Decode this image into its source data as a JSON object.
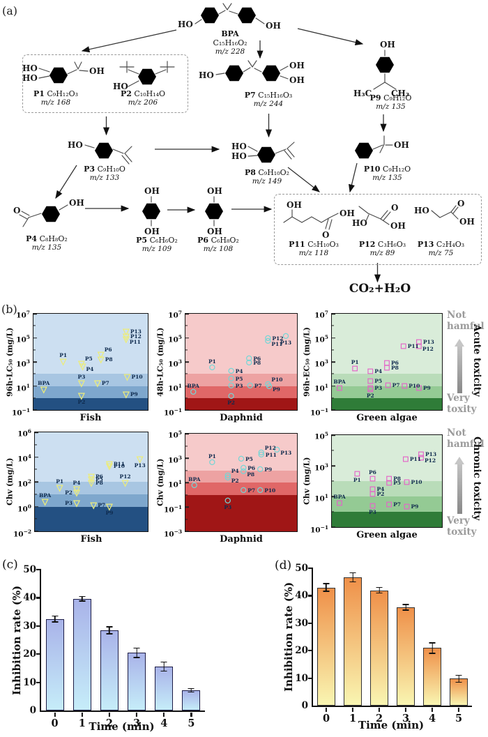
{
  "panel_a": {
    "label": "(a)",
    "final_product": "CO₂+H₂O",
    "compounds": {
      "bpa": {
        "name": "BPA",
        "formula": "C₁₅H₁₆O₂",
        "mz": "m/z 228",
        "atoms": {
          "l": "HO",
          "r": "OH"
        }
      },
      "p1": {
        "name": "P1",
        "formula": "C₉H₁₂O₃",
        "mz": "m/z 168",
        "atoms": {
          "tl": "HO",
          "bl": "HO",
          "r": "OH"
        }
      },
      "p2": {
        "name": "P2",
        "formula": "C₁₀H₁₄O",
        "mz": "m/z 206",
        "atoms": {
          "l": "HO"
        }
      },
      "p3": {
        "name": "P3",
        "formula": "C₉H₁₀O",
        "mz": "m/z 133",
        "atoms": {
          "l": "HO"
        }
      },
      "p4": {
        "name": "P4",
        "formula": "C₈H₈O₂",
        "mz": "m/z 135",
        "atoms": {
          "l": "O",
          "r": "OH"
        }
      },
      "p5": {
        "name": "P5",
        "formula": "C₆H₆O₂",
        "mz": "m/z 109",
        "atoms": {
          "t": "OH",
          "b": "OH"
        }
      },
      "p6": {
        "name": "P6",
        "formula": "C₆H₈O₂",
        "mz": "m/z 108",
        "atoms": {
          "t": "OH",
          "b": "OH"
        }
      },
      "p7": {
        "name": "P7",
        "formula": "C₁₅H₁₆O₃",
        "mz": "m/z 244",
        "atoms": {
          "l": "HO",
          "tr": "OH",
          "br": "OH"
        }
      },
      "p8": {
        "name": "P8",
        "formula": "C₉H₁₀O₂",
        "mz": "m/z 149",
        "atoms": {
          "tl": "HO",
          "bl": "HO"
        }
      },
      "p9": {
        "name": "P9",
        "formula": "C₉H₁₂O",
        "mz": "m/z 135",
        "atoms": {
          "t": "OH",
          "bl": "H₃C",
          "br": "CH₃"
        }
      },
      "p10": {
        "name": "P10",
        "formula": "C₉H₁₂O",
        "mz": "m/z 135",
        "atoms": {
          "r": "OH"
        }
      },
      "p11": {
        "name": "P11",
        "formula": "C₅H₁₀O₃",
        "mz": "m/z 118",
        "atoms": {
          "t": "OH",
          "r": "OH",
          "b": "O"
        }
      },
      "p12": {
        "name": "P12",
        "formula": "C₃H₆O₃",
        "mz": "m/z 89",
        "atoms": {
          "l": "HO",
          "t": "O",
          "r": "OH"
        }
      },
      "p13": {
        "name": "P13",
        "formula": "C₂H₄O₃",
        "mz": "m/z 75",
        "atoms": {
          "l": "HO",
          "t": "O",
          "r": "OH"
        }
      }
    }
  },
  "panel_b": {
    "label": "(b)",
    "band_edges": [
      2,
      1,
      0
    ],
    "themes": {
      "blue": {
        "bands": [
          "#ccdff1",
          "#a8c6e2",
          "#7ea7cd",
          "#235082"
        ],
        "marker": "triangle",
        "marker_color": "#ecec7a"
      },
      "red": {
        "bands": [
          "#f6caca",
          "#eda2a2",
          "#e06767",
          "#a01616"
        ],
        "marker": "circle",
        "marker_color": "#74d6d6"
      },
      "green": {
        "bands": [
          "#d9ecd9",
          "#b9dcb9",
          "#94ca94",
          "#2f7c38"
        ],
        "marker": "square",
        "marker_color": "#e464c8"
      }
    },
    "side": [
      {
        "top": "Not hamful",
        "bottom": "Very toxity",
        "axis": "Acute toxicity"
      },
      {
        "top": "Not hamful",
        "bottom": "Very toxity",
        "axis": "Chronic toxicity"
      }
    ],
    "plots": [
      {
        "ylabel": "96h-LC₅₀ (mg/L)",
        "xlabel": "Fish",
        "log_max": 7,
        "log_min": -1,
        "yticks": [
          7,
          5,
          3,
          1,
          -1
        ],
        "theme": "blue",
        "points": [
          {
            "label": "BPA",
            "value": 5,
            "x": 0.09,
            "lp": "t"
          },
          {
            "label": "P1",
            "value": 1000,
            "x": 0.26,
            "lp": "t"
          },
          {
            "label": "P5",
            "value": 700,
            "x": 0.42,
            "lp": "tr"
          },
          {
            "label": "P4",
            "value": 400,
            "x": 0.43,
            "lp": "br"
          },
          {
            "label": "P3",
            "value": 15,
            "x": 0.42,
            "lp": "t"
          },
          {
            "label": "P2",
            "value": 1.5,
            "x": 0.42,
            "lp": "b"
          },
          {
            "label": "P6",
            "value": 4000,
            "x": 0.59,
            "lp": "tr"
          },
          {
            "label": "P8",
            "value": 1500,
            "x": 0.59,
            "lp": "r"
          },
          {
            "label": "P7",
            "value": 17,
            "x": 0.56,
            "lp": "r"
          },
          {
            "label": "P13",
            "value": 300000,
            "x": 0.81,
            "lp": "r"
          },
          {
            "label": "P12",
            "value": 130000,
            "x": 0.81,
            "lp": "r"
          },
          {
            "label": "P11",
            "value": 70000,
            "x": 0.81,
            "lp": "br"
          },
          {
            "label": "P10",
            "value": 50,
            "x": 0.82,
            "lp": "r"
          },
          {
            "label": "P9",
            "value": 1.8,
            "x": 0.81,
            "lp": "r"
          }
        ]
      },
      {
        "ylabel": "48h-LC₅₀ (mg/L)",
        "xlabel": "Daphnid",
        "log_max": 7,
        "log_min": -1,
        "yticks": [
          7,
          5,
          3,
          1,
          -1
        ],
        "theme": "red",
        "points": [
          {
            "label": "BPA",
            "value": 3,
            "x": 0.07,
            "lp": "t"
          },
          {
            "label": "P1",
            "value": 300,
            "x": 0.24,
            "lp": "t"
          },
          {
            "label": "P4",
            "value": 150,
            "x": 0.41,
            "lp": "r"
          },
          {
            "label": "P5",
            "value": 35,
            "x": 0.41,
            "lp": "r"
          },
          {
            "label": "P3",
            "value": 10,
            "x": 0.41,
            "lp": "r"
          },
          {
            "label": "P2",
            "value": 1.3,
            "x": 0.41,
            "lp": "b"
          },
          {
            "label": "P6",
            "value": 1800,
            "x": 0.57,
            "lp": "r"
          },
          {
            "label": "P8",
            "value": 800,
            "x": 0.57,
            "lp": "r"
          },
          {
            "label": "P7",
            "value": 10,
            "x": 0.58,
            "lp": "r"
          },
          {
            "label": "P12",
            "value": 80000,
            "x": 0.74,
            "lp": "r"
          },
          {
            "label": "P11",
            "value": 50000,
            "x": 0.74,
            "lp": "br"
          },
          {
            "label": "P13",
            "value": 120000,
            "x": 0.9,
            "lp": "b"
          },
          {
            "label": "P10",
            "value": 13,
            "x": 0.74,
            "lp": "tr"
          },
          {
            "label": "P9",
            "value": 8,
            "x": 0.75,
            "lp": "br"
          }
        ]
      },
      {
        "ylabel": "96h-EC₅₀ (mg/L)",
        "xlabel": "Green algae",
        "log_max": 7,
        "log_min": -1,
        "yticks": [
          7,
          5,
          3,
          1,
          -1
        ],
        "theme": "green",
        "points": [
          {
            "label": "BPA",
            "value": 6,
            "x": 0.07,
            "lp": "t"
          },
          {
            "label": "P1",
            "value": 250,
            "x": 0.21,
            "lp": "t"
          },
          {
            "label": "P4",
            "value": 160,
            "x": 0.35,
            "lp": "r"
          },
          {
            "label": "P5",
            "value": 23,
            "x": 0.35,
            "lp": "r"
          },
          {
            "label": "P3",
            "value": 6.5,
            "x": 0.35,
            "lp": "r"
          },
          {
            "label": "P2",
            "value": 4.5,
            "x": 0.35,
            "lp": "b"
          },
          {
            "label": "P6",
            "value": 800,
            "x": 0.5,
            "lp": "r"
          },
          {
            "label": "P8",
            "value": 320,
            "x": 0.5,
            "lp": "r"
          },
          {
            "label": "P7",
            "value": 11,
            "x": 0.51,
            "lp": "r"
          },
          {
            "label": "P11",
            "value": 18000,
            "x": 0.65,
            "lp": "r"
          },
          {
            "label": "P13",
            "value": 40000,
            "x": 0.79,
            "lp": "r"
          },
          {
            "label": "P12",
            "value": 20000,
            "x": 0.79,
            "lp": "br"
          },
          {
            "label": "P10",
            "value": 9,
            "x": 0.66,
            "lp": "r"
          },
          {
            "label": "P9",
            "value": 6,
            "x": 0.79,
            "lp": "r"
          }
        ]
      },
      {
        "ylabel": "Chv (mg/L)",
        "xlabel": "Fish",
        "log_max": 6,
        "log_min": -2,
        "yticks": [
          6,
          4,
          2,
          0,
          -2
        ],
        "theme": "blue",
        "points": [
          {
            "label": "BPA",
            "value": 2.3,
            "x": 0.09,
            "lp": "t"
          },
          {
            "label": "P1",
            "value": 32,
            "x": 0.22,
            "lp": "t"
          },
          {
            "label": "P4",
            "value": 23,
            "x": 0.37,
            "lp": "t"
          },
          {
            "label": "P2",
            "value": 13,
            "x": 0.37,
            "lp": "l"
          },
          {
            "label": "P3",
            "value": 1.8,
            "x": 0.37,
            "lp": "l"
          },
          {
            "label": "P6",
            "value": 240,
            "x": 0.5,
            "lp": "r"
          },
          {
            "label": "P5",
            "value": 145,
            "x": 0.5,
            "lp": "r"
          },
          {
            "label": "P8",
            "value": 76,
            "x": 0.5,
            "lp": "r"
          },
          {
            "label": "P7",
            "value": 1.2,
            "x": 0.52,
            "lp": "r"
          },
          {
            "label": "P11",
            "value": 2500,
            "x": 0.66,
            "lp": "r"
          },
          {
            "label": "P10",
            "value": 1800,
            "x": 0.66,
            "lp": "r"
          },
          {
            "label": "P12",
            "value": 80,
            "x": 0.8,
            "lp": "t"
          },
          {
            "label": "P13",
            "value": 6000,
            "x": 0.93,
            "lp": "b"
          },
          {
            "label": "P9",
            "value": 0.9,
            "x": 0.66,
            "lp": "b"
          }
        ]
      },
      {
        "ylabel": "Chv (mg/L)",
        "xlabel": "Daphnid",
        "log_max": 5,
        "log_min": -3,
        "yticks": [
          5,
          3,
          1,
          -1,
          -3
        ],
        "theme": "red",
        "points": [
          {
            "label": "BPA",
            "value": 5,
            "x": 0.08,
            "lp": "t"
          },
          {
            "label": "P1",
            "value": 380,
            "x": 0.24,
            "lp": "t"
          },
          {
            "label": "P4",
            "value": 31,
            "x": 0.38,
            "lp": "tr"
          },
          {
            "label": "P2",
            "value": 21,
            "x": 0.38,
            "lp": "br"
          },
          {
            "label": "P5",
            "value": 800,
            "x": 0.5,
            "lp": "r"
          },
          {
            "label": "P6",
            "value": 140,
            "x": 0.52,
            "lp": "r"
          },
          {
            "label": "P8",
            "value": 70,
            "x": 0.52,
            "lp": "br"
          },
          {
            "label": "P7",
            "value": 2,
            "x": 0.52,
            "lp": "r"
          },
          {
            "label": "P3",
            "value": 0.3,
            "x": 0.38,
            "lp": "b"
          },
          {
            "label": "P12",
            "value": 2500,
            "x": 0.68,
            "lp": "tr"
          },
          {
            "label": "P11",
            "value": 1600,
            "x": 0.68,
            "lp": "r"
          },
          {
            "label": "P13",
            "value": 4000,
            "x": 0.82,
            "lp": "br"
          },
          {
            "label": "P9",
            "value": 110,
            "x": 0.67,
            "lp": "r"
          },
          {
            "label": "P10",
            "value": 2,
            "x": 0.67,
            "lp": "r"
          }
        ]
      },
      {
        "ylabel": "Chv (mg/L)",
        "xlabel": "Green algae",
        "log_max": 5,
        "log_min": -1,
        "yticks": [
          5,
          3,
          1,
          -1
        ],
        "theme": "green",
        "points": [
          {
            "label": "BPA",
            "value": 3.5,
            "x": 0.07,
            "lp": "t"
          },
          {
            "label": "P1",
            "value": 300,
            "x": 0.23,
            "lp": "b"
          },
          {
            "label": "P6",
            "value": 130,
            "x": 0.37,
            "lp": "t"
          },
          {
            "label": "P4",
            "value": 30,
            "x": 0.37,
            "lp": "r"
          },
          {
            "label": "P2",
            "value": 14,
            "x": 0.37,
            "lp": "r"
          },
          {
            "label": "P3",
            "value": 2.3,
            "x": 0.37,
            "lp": "b"
          },
          {
            "label": "P8",
            "value": 130,
            "x": 0.52,
            "lp": "r"
          },
          {
            "label": "P5",
            "value": 70,
            "x": 0.52,
            "lp": "r"
          },
          {
            "label": "P7",
            "value": 3,
            "x": 0.52,
            "lp": "r"
          },
          {
            "label": "P11",
            "value": 2600,
            "x": 0.67,
            "lp": "r"
          },
          {
            "label": "P13",
            "value": 5500,
            "x": 0.81,
            "lp": "r"
          },
          {
            "label": "P12",
            "value": 3200,
            "x": 0.81,
            "lp": "br"
          },
          {
            "label": "P10",
            "value": 80,
            "x": 0.68,
            "lp": "r"
          },
          {
            "label": "P9",
            "value": 2,
            "x": 0.68,
            "lp": "r"
          }
        ]
      }
    ]
  },
  "panel_c": {
    "label": "(c)",
    "type": "bar",
    "ylabel": "Inhibition rate (%)",
    "xlabel": "Time (min)",
    "categories": [
      "0",
      "1",
      "2",
      "3",
      "4",
      "5"
    ],
    "values": [
      32.5,
      39.7,
      28.5,
      20.5,
      15.6,
      7.2
    ],
    "errors": [
      1.2,
      1.0,
      1.4,
      1.9,
      1.8,
      0.8
    ],
    "ymax": 50,
    "yticks": [
      0,
      10,
      20,
      30,
      40,
      50
    ],
    "bar_top": "#a9b3e9",
    "bar_bottom": "#c6edf9",
    "bar_border": "#1c1c45"
  },
  "panel_d": {
    "label": "(d)",
    "type": "bar",
    "ylabel": "Inhibition rate (%)",
    "xlabel": "Time (min)",
    "categories": [
      "0",
      "1",
      "2",
      "3",
      "4",
      "5"
    ],
    "values": [
      43,
      46.7,
      42,
      35.8,
      21,
      9.8
    ],
    "errors": [
      1.6,
      1.8,
      1.2,
      1.2,
      2.1,
      1.5
    ],
    "ymax": 50,
    "yticks": [
      0,
      10,
      20,
      30,
      40,
      50
    ],
    "bar_top": "#ef9049",
    "bar_bottom": "#f9f6b2",
    "bar_border": "#333333"
  }
}
